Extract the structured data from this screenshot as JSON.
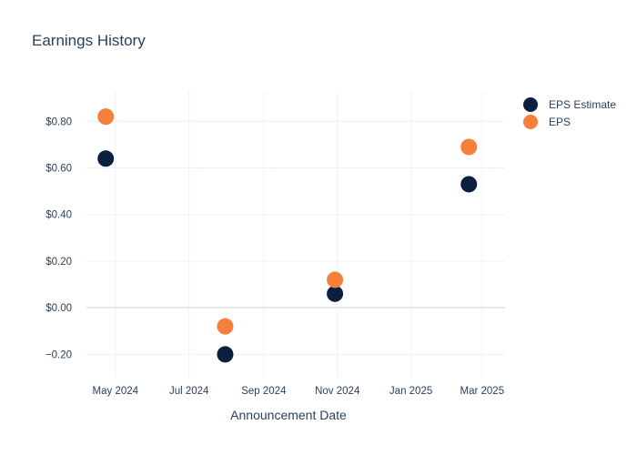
{
  "chart_data": {
    "type": "scatter",
    "title": "Earnings History",
    "xlabel": "Announcement Date",
    "ylabel": "",
    "x_ticks": [
      {
        "date": "2024-05-01",
        "label": "May 2024"
      },
      {
        "date": "2024-07-01",
        "label": "Jul 2024"
      },
      {
        "date": "2024-09-01",
        "label": "Sep 2024"
      },
      {
        "date": "2024-11-01",
        "label": "Nov 2024"
      },
      {
        "date": "2025-01-01",
        "label": "Jan 2025"
      },
      {
        "date": "2025-03-01",
        "label": "Mar 2025"
      }
    ],
    "y_ticks": [
      {
        "value": -0.2,
        "label": "−0.20"
      },
      {
        "value": 0.0,
        "label": "$0.00"
      },
      {
        "value": 0.2,
        "label": "$0.20"
      },
      {
        "value": 0.4,
        "label": "$0.40"
      },
      {
        "value": 0.6,
        "label": "$0.60"
      },
      {
        "value": 0.8,
        "label": "$0.80"
      }
    ],
    "xlim": [
      "2024-04-07",
      "2025-03-20"
    ],
    "ylim": [
      -0.3,
      0.93
    ],
    "grid": true,
    "legend_position": "top-right",
    "series": [
      {
        "name": "EPS Estimate",
        "color": "#0c1f3f",
        "points": [
          {
            "x": "2024-04-23",
            "y": 0.64
          },
          {
            "x": "2024-07-31",
            "y": -0.2
          },
          {
            "x": "2024-10-30",
            "y": 0.06
          },
          {
            "x": "2025-02-18",
            "y": 0.53
          }
        ]
      },
      {
        "name": "EPS",
        "color": "#f5803b",
        "points": [
          {
            "x": "2024-04-23",
            "y": 0.82
          },
          {
            "x": "2024-07-31",
            "y": -0.08
          },
          {
            "x": "2024-10-30",
            "y": 0.12
          },
          {
            "x": "2025-02-18",
            "y": 0.69
          }
        ]
      }
    ]
  }
}
